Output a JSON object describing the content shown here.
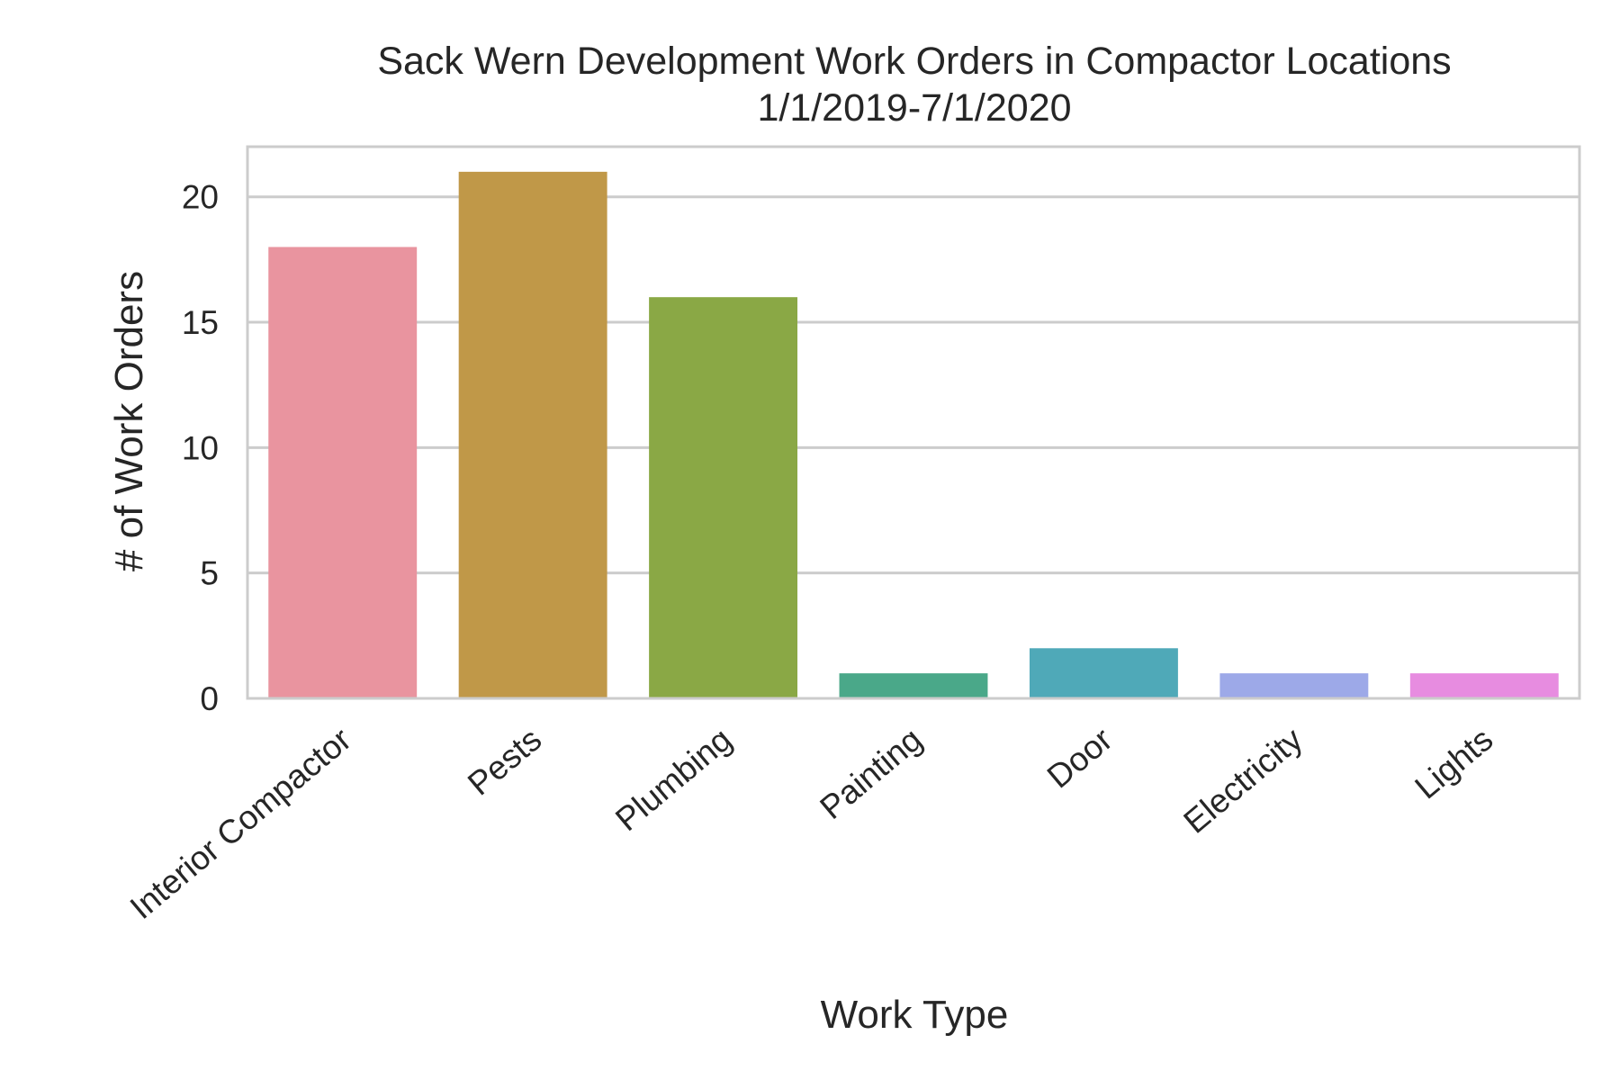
{
  "chart_data": {
    "type": "bar",
    "title": "Sack Wern Development Work Orders in Compactor Locations",
    "subtitle": "1/1/2019-7/1/2020",
    "xlabel": "Work Type",
    "ylabel": "# of Work Orders",
    "categories": [
      "Interior Compactor",
      "Pests",
      "Plumbing",
      "Painting",
      "Door",
      "Electricity",
      "Lights"
    ],
    "values": [
      18,
      21,
      16,
      1,
      2,
      1,
      1
    ],
    "colors": [
      "#e9949f",
      "#c09848",
      "#8aa845",
      "#4aa889",
      "#4fa9b8",
      "#9da9e8",
      "#e78ce0"
    ],
    "ylim": [
      0,
      22
    ],
    "yticks": [
      0,
      5,
      10,
      15,
      20
    ],
    "grid": true,
    "legend": "none"
  }
}
